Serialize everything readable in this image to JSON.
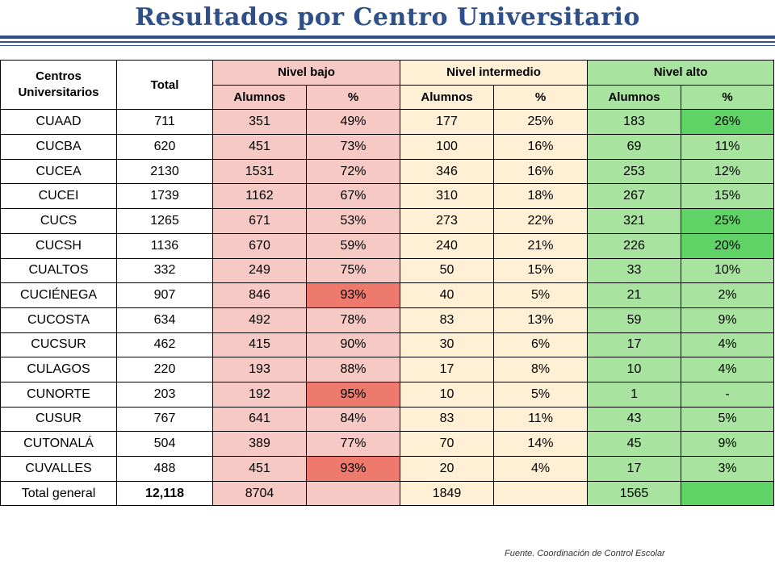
{
  "title": "Resultados por Centro Universitario",
  "colors": {
    "title": "#2e4f87",
    "nivel_bajo": "#f6c9c5",
    "nivel_bajo_highlight": "#ee7a6d",
    "nivel_intermedio": "#fff0d5",
    "nivel_alto": "#a8e4a0",
    "nivel_alto_highlight": "#5fd365"
  },
  "table": {
    "header": {
      "centros": "Centros Universitarios",
      "total": "Total",
      "nivel_bajo": "Nivel bajo",
      "nivel_intermedio": "Nivel intermedio",
      "nivel_alto": "Nivel alto",
      "alumnos": "Alumnos",
      "pct": "%"
    },
    "rows": [
      {
        "centro": "CUAAD",
        "total": "711",
        "bajo_alumnos": "351",
        "bajo_pct": "49%",
        "int_alumnos": "177",
        "int_pct": "25%",
        "alto_alumnos": "183",
        "alto_pct": "26%"
      },
      {
        "centro": "CUCBA",
        "total": "620",
        "bajo_alumnos": "451",
        "bajo_pct": "73%",
        "int_alumnos": "100",
        "int_pct": "16%",
        "alto_alumnos": "69",
        "alto_pct": "11%"
      },
      {
        "centro": "CUCEA",
        "total": "2130",
        "bajo_alumnos": "1531",
        "bajo_pct": "72%",
        "int_alumnos": "346",
        "int_pct": "16%",
        "alto_alumnos": "253",
        "alto_pct": "12%"
      },
      {
        "centro": "CUCEI",
        "total": "1739",
        "bajo_alumnos": "1162",
        "bajo_pct": "67%",
        "int_alumnos": "310",
        "int_pct": "18%",
        "alto_alumnos": "267",
        "alto_pct": "15%"
      },
      {
        "centro": "CUCS",
        "total": "1265",
        "bajo_alumnos": "671",
        "bajo_pct": "53%",
        "int_alumnos": "273",
        "int_pct": "22%",
        "alto_alumnos": "321",
        "alto_pct": "25%"
      },
      {
        "centro": "CUCSH",
        "total": "1136",
        "bajo_alumnos": "670",
        "bajo_pct": "59%",
        "int_alumnos": "240",
        "int_pct": "21%",
        "alto_alumnos": "226",
        "alto_pct": "20%"
      },
      {
        "centro": "CUALTOS",
        "total": "332",
        "bajo_alumnos": "249",
        "bajo_pct": "75%",
        "int_alumnos": "50",
        "int_pct": "15%",
        "alto_alumnos": "33",
        "alto_pct": "10%"
      },
      {
        "centro": "CUCIÉNEGA",
        "total": "907",
        "bajo_alumnos": "846",
        "bajo_pct": "93%",
        "int_alumnos": "40",
        "int_pct": "5%",
        "alto_alumnos": "21",
        "alto_pct": "2%"
      },
      {
        "centro": "CUCOSTA",
        "total": "634",
        "bajo_alumnos": "492",
        "bajo_pct": "78%",
        "int_alumnos": "83",
        "int_pct": "13%",
        "alto_alumnos": "59",
        "alto_pct": "9%"
      },
      {
        "centro": "CUCSUR",
        "total": "462",
        "bajo_alumnos": "415",
        "bajo_pct": "90%",
        "int_alumnos": "30",
        "int_pct": "6%",
        "alto_alumnos": "17",
        "alto_pct": "4%"
      },
      {
        "centro": "CULAGOS",
        "total": "220",
        "bajo_alumnos": "193",
        "bajo_pct": "88%",
        "int_alumnos": "17",
        "int_pct": "8%",
        "alto_alumnos": "10",
        "alto_pct": "4%"
      },
      {
        "centro": "CUNORTE",
        "total": "203",
        "bajo_alumnos": "192",
        "bajo_pct": "95%",
        "int_alumnos": "10",
        "int_pct": "5%",
        "alto_alumnos": "1",
        "alto_pct": "-"
      },
      {
        "centro": "CUSUR",
        "total": "767",
        "bajo_alumnos": "641",
        "bajo_pct": "84%",
        "int_alumnos": "83",
        "int_pct": "11%",
        "alto_alumnos": "43",
        "alto_pct": "5%"
      },
      {
        "centro": "CUTONALÁ",
        "total": "504",
        "bajo_alumnos": "389",
        "bajo_pct": "77%",
        "int_alumnos": "70",
        "int_pct": "14%",
        "alto_alumnos": "45",
        "alto_pct": "9%"
      },
      {
        "centro": "CUVALLES",
        "total": "488",
        "bajo_alumnos": "451",
        "bajo_pct": "93%",
        "int_alumnos": "20",
        "int_pct": "4%",
        "alto_alumnos": "17",
        "alto_pct": "3%"
      }
    ],
    "total_row": {
      "label": "Total general",
      "total": "12,118",
      "bajo_alumnos": "8704",
      "int_alumnos": "1849",
      "alto_alumnos": "1565"
    }
  },
  "source": "Fuente. Coordinación  de Control Escolar"
}
